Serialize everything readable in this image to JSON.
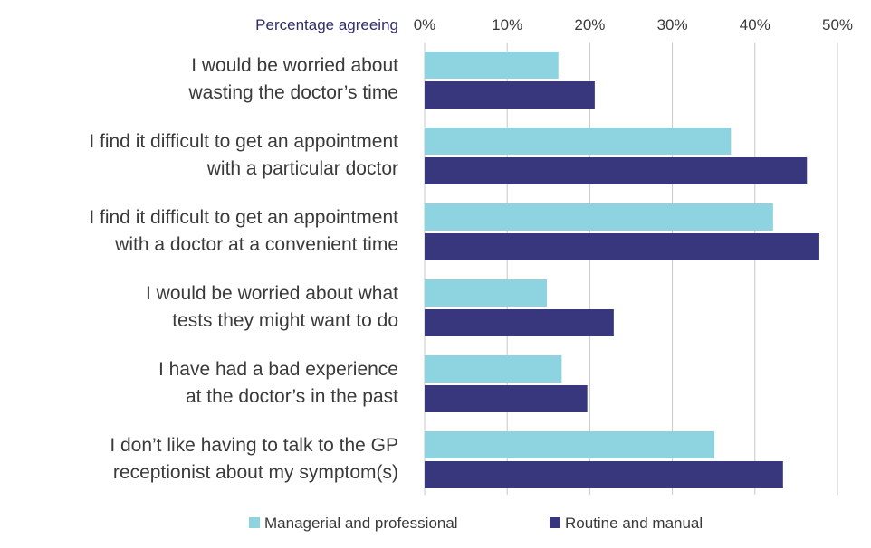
{
  "chart_data": {
    "type": "bar",
    "orientation": "horizontal",
    "xlabel": "Percentage agreeing",
    "xlim": [
      0,
      50
    ],
    "x_ticks": [
      "0%",
      "10%",
      "20%",
      "30%",
      "40%",
      "50%"
    ],
    "grid": true,
    "legend_position": "bottom",
    "categories": [
      [
        "I would be worried about",
        "wasting the doctor’s time"
      ],
      [
        "I find it difficult to get an appointment",
        "with a particular doctor"
      ],
      [
        "I find it difficult to get an appointment",
        "with a doctor at a convenient time"
      ],
      [
        "I would be worried about what",
        "tests they might want to do"
      ],
      [
        "I have had a bad experience",
        "at the doctor’s in the past"
      ],
      [
        "I don’t like having to talk to the GP",
        "receptionist about my symptom(s)"
      ]
    ],
    "series": [
      {
        "name": "Managerial and professional",
        "color": "#8dd3e0",
        "values": [
          16.2,
          37.1,
          42.2,
          14.8,
          16.6,
          35.1
        ]
      },
      {
        "name": "Routine and manual",
        "color": "#38367c",
        "values": [
          20.6,
          46.3,
          47.8,
          22.9,
          19.7,
          43.4
        ]
      }
    ]
  }
}
